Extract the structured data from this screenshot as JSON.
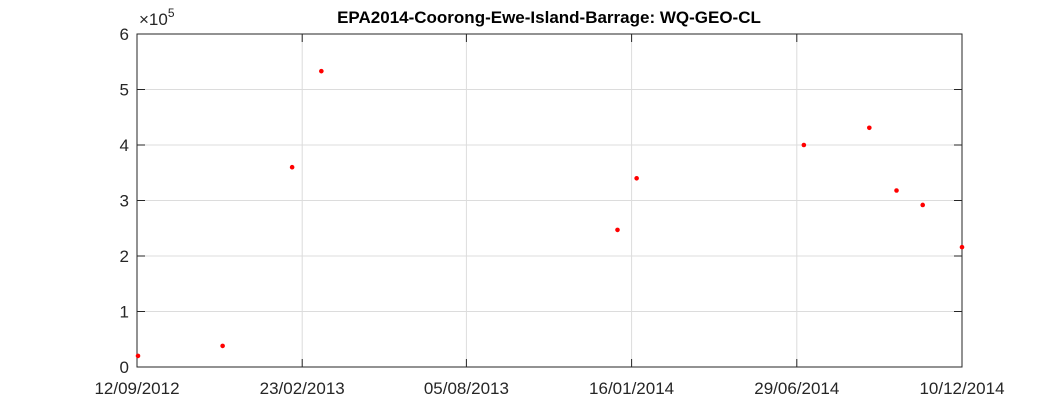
{
  "chart_data": {
    "type": "scatter",
    "title": "EPA2014-Coorong-Ewe-Island-Barrage: WQ-GEO-CL",
    "xlabel": "",
    "ylabel": "",
    "x_axis_type": "date",
    "xlim": [
      "2012-09-12",
      "2014-12-10"
    ],
    "x_ticks": [
      "2012-09-12",
      "2013-02-23",
      "2013-08-05",
      "2014-01-16",
      "2014-06-29",
      "2014-12-10"
    ],
    "x_tick_labels": [
      "12/09/2012",
      "23/02/2013",
      "05/08/2013",
      "16/01/2014",
      "29/06/2014",
      "10/12/2014"
    ],
    "ylim": [
      0,
      600000
    ],
    "y_ticks": [
      0,
      100000,
      200000,
      300000,
      400000,
      500000,
      600000
    ],
    "y_tick_labels": [
      "0",
      "1",
      "2",
      "3",
      "4",
      "5",
      "6"
    ],
    "y_exponent_label": "×10",
    "y_exponent_power": "5",
    "grid": true,
    "marker_color": "#ff0000",
    "series": [
      {
        "x": [
          "2012-09-13",
          "2012-12-06",
          "2013-02-13",
          "2013-03-14",
          "2014-01-02",
          "2014-01-21",
          "2014-07-06",
          "2014-09-09",
          "2014-10-06",
          "2014-11-01",
          "2014-12-10"
        ],
        "y": [
          20000,
          38000,
          360000,
          533000,
          247000,
          340000,
          400000,
          431000,
          318000,
          292000,
          216000
        ]
      }
    ]
  }
}
